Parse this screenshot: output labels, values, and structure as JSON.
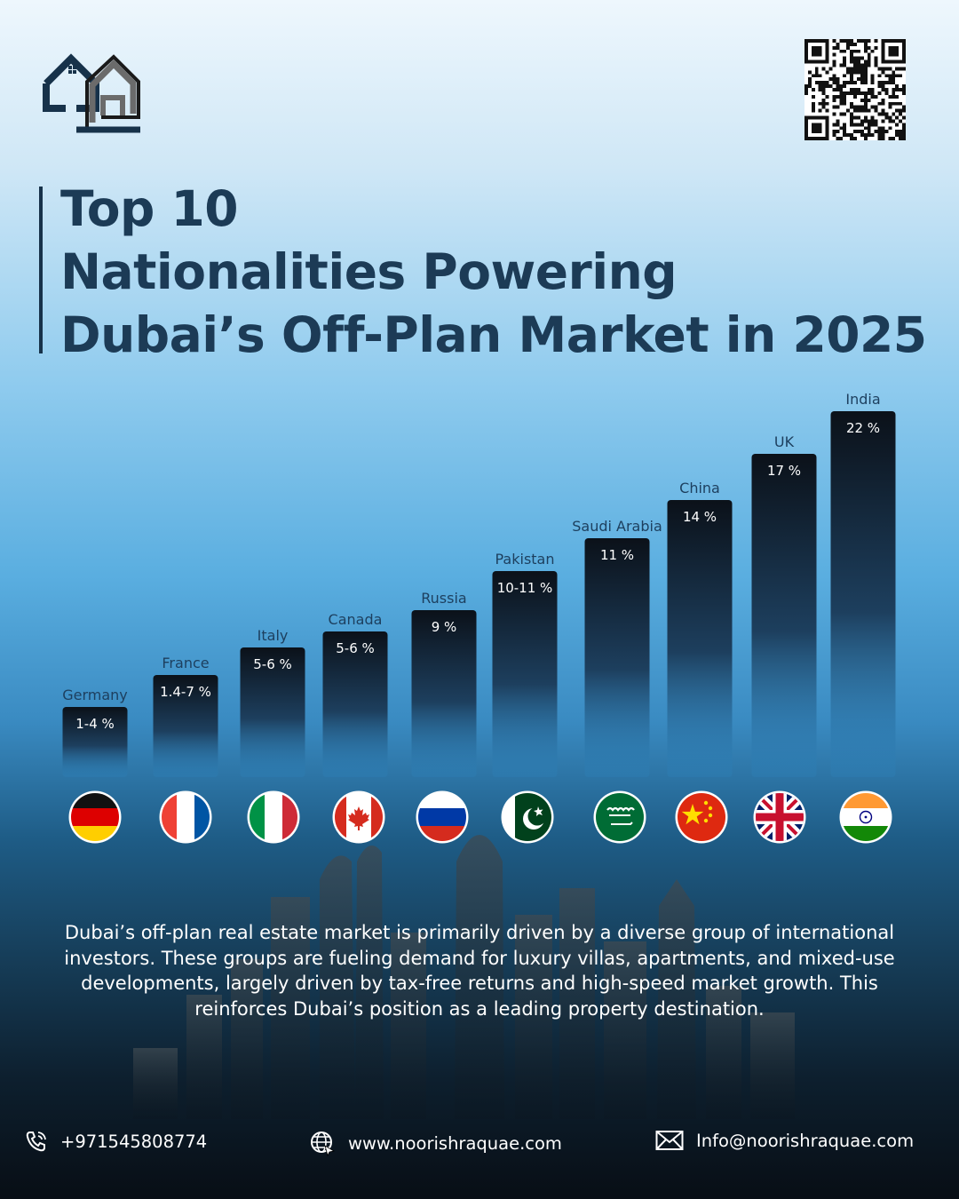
{
  "title": {
    "line1": "Top 10",
    "line2": "Nationalities Powering",
    "line3": "Dubai’s Off-Plan Market in 2025"
  },
  "colors": {
    "title": "#1c3b56",
    "bar_top": "#0b1119",
    "bar_bottom": "#2d85c0",
    "country_label": "#1d3f5e"
  },
  "chart_data": {
    "type": "bar",
    "categories": [
      "Germany",
      "France",
      "Italy",
      "Canada",
      "Russia",
      "Pakistan",
      "Saudi Arabia",
      "China",
      "UK",
      "India"
    ],
    "values": [
      1.4,
      7,
      6,
      6,
      9,
      11,
      11,
      14,
      17,
      22
    ],
    "value_labels": [
      "1-4 %",
      "1.4-7 %",
      "5-6 %",
      "5-6 %",
      "9 %",
      "10-11 %",
      "11 %",
      "14 %",
      "17 %",
      "22 %"
    ],
    "flags": [
      "germany-flag-icon",
      "france-flag-icon",
      "italy-flag-icon",
      "canada-flag-icon",
      "russia-flag-icon",
      "pakistan-flag-icon",
      "saudi-arabia-flag-icon",
      "china-flag-icon",
      "uk-flag-icon",
      "india-flag-icon"
    ],
    "ylim": [
      0,
      22
    ],
    "grid": false,
    "legend": "none"
  },
  "description": "Dubai’s off-plan real estate market is primarily driven by a diverse group of international investors. These groups are fueling demand for luxury villas, apartments, and mixed-use developments, largely driven by tax-free returns and high-speed market growth. This reinforces Dubai’s position as a leading property destination.",
  "footer": {
    "phone": "+971545808774",
    "website": "www.noorishraquae.com",
    "email": "Info@noorishraquae.com"
  }
}
